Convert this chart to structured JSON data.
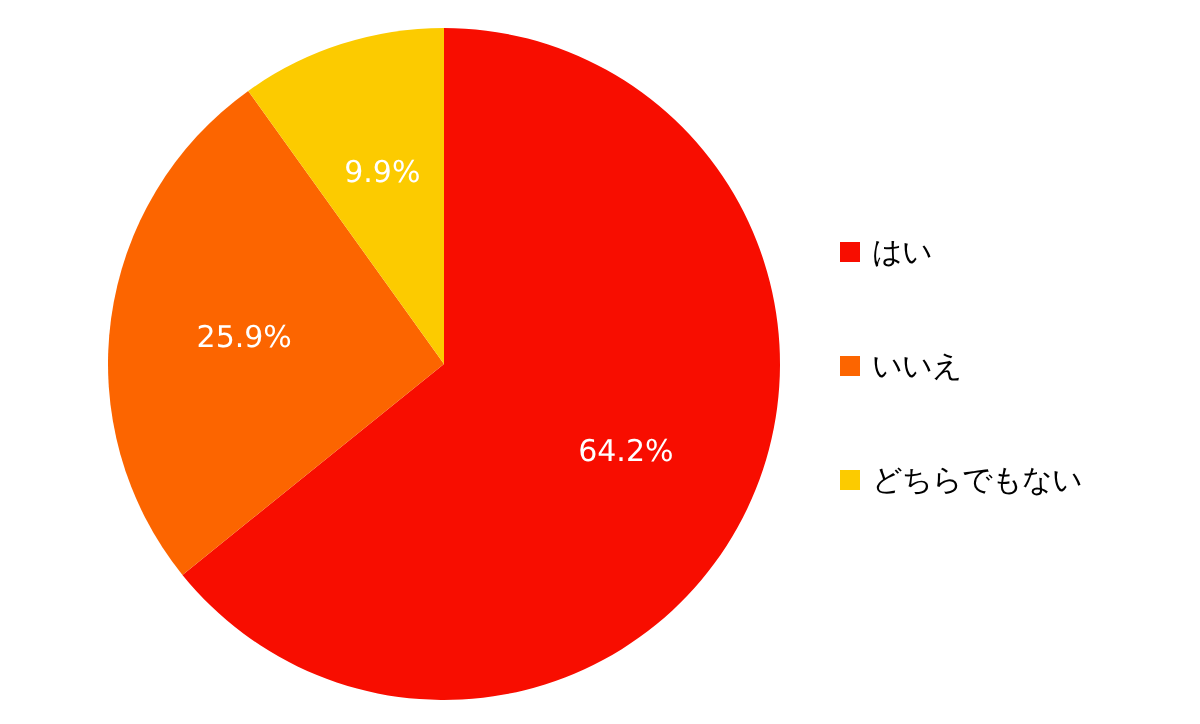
{
  "chart_data": {
    "type": "pie",
    "categories": [
      "はい",
      "いいえ",
      "どちらでもない"
    ],
    "values": [
      64.2,
      25.9,
      9.9
    ],
    "value_labels": [
      "64.2%",
      "25.9%",
      "9.9%"
    ],
    "colors": [
      "#f80d00",
      "#fc6500",
      "#fccb00"
    ],
    "legend": "right"
  }
}
